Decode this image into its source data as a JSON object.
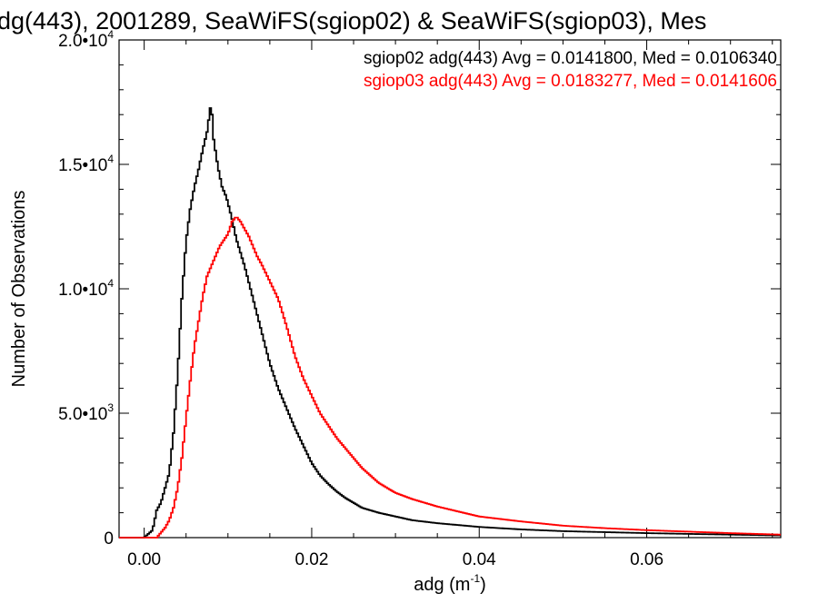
{
  "chart_data": {
    "type": "line",
    "title": "dg(443), 2001289, SeaWiFS(sgiop02) & SeaWiFS(sgiop03), Mes",
    "xlabel": "adg (m",
    "xlabel_sup": "-1",
    "xlabel_close": ")",
    "ylabel": "Number of Observations",
    "xlim": [
      -0.003,
      0.076
    ],
    "ylim": [
      0,
      20000
    ],
    "x_ticks": [
      {
        "value": 0.0,
        "label": "0.00"
      },
      {
        "value": 0.02,
        "label": "0.02"
      },
      {
        "value": 0.04,
        "label": "0.04"
      },
      {
        "value": 0.06,
        "label": "0.06"
      }
    ],
    "y_ticks": [
      {
        "value": 0,
        "label": "0",
        "sup": ""
      },
      {
        "value": 5000,
        "label": "5.0•10",
        "sup": "3"
      },
      {
        "value": 10000,
        "label": "1.0•10",
        "sup": "4"
      },
      {
        "value": 15000,
        "label": "1.5•10",
        "sup": "4"
      },
      {
        "value": 20000,
        "label": "2.0•10",
        "sup": "4"
      }
    ],
    "legend_position": "top-right",
    "series": [
      {
        "legend": "sgiop02 adg(443) Avg = 0.0141800, Med = 0.0106340",
        "color": "#000000",
        "x": [
          -0.003,
          0.0,
          0.001,
          0.0015,
          0.002,
          0.003,
          0.0035,
          0.004,
          0.0045,
          0.005,
          0.0055,
          0.006,
          0.0065,
          0.007,
          0.0075,
          0.008,
          0.0083,
          0.0088,
          0.0093,
          0.0098,
          0.0105,
          0.011,
          0.012,
          0.013,
          0.014,
          0.015,
          0.016,
          0.017,
          0.018,
          0.019,
          0.02,
          0.021,
          0.022,
          0.023,
          0.024,
          0.025,
          0.026,
          0.028,
          0.03,
          0.032,
          0.035,
          0.04,
          0.045,
          0.05,
          0.055,
          0.06,
          0.065,
          0.07,
          0.076
        ],
        "y": [
          0,
          0,
          300,
          1100,
          1400,
          2600,
          4200,
          6600,
          9600,
          11900,
          13200,
          14100,
          14800,
          15600,
          16300,
          17500,
          16000,
          14900,
          14100,
          13700,
          12800,
          12000,
          10900,
          9600,
          8300,
          7000,
          6000,
          5200,
          4400,
          3700,
          3000,
          2500,
          2150,
          1850,
          1600,
          1400,
          1200,
          1000,
          850,
          700,
          580,
          430,
          330,
          260,
          220,
          180,
          150,
          120,
          90
        ]
      },
      {
        "legend": "sgiop03 adg(443) Avg = 0.0183277, Med = 0.0141606",
        "color": "#ff0000",
        "x": [
          -0.003,
          0.0015,
          0.002,
          0.0025,
          0.003,
          0.0035,
          0.004,
          0.0045,
          0.005,
          0.0055,
          0.006,
          0.0065,
          0.007,
          0.0075,
          0.008,
          0.009,
          0.01,
          0.0105,
          0.011,
          0.0115,
          0.012,
          0.0125,
          0.013,
          0.0135,
          0.014,
          0.015,
          0.016,
          0.017,
          0.018,
          0.019,
          0.02,
          0.021,
          0.022,
          0.023,
          0.024,
          0.025,
          0.026,
          0.027,
          0.028,
          0.03,
          0.032,
          0.035,
          0.04,
          0.045,
          0.05,
          0.055,
          0.06,
          0.065,
          0.07,
          0.076
        ],
        "y": [
          0,
          0,
          200,
          400,
          700,
          1200,
          2000,
          3200,
          4800,
          6300,
          7700,
          8700,
          9700,
          10500,
          10900,
          11700,
          12200,
          12700,
          12900,
          12700,
          12400,
          12100,
          11700,
          11300,
          11000,
          10300,
          9600,
          8500,
          7300,
          6400,
          5700,
          5000,
          4500,
          4000,
          3600,
          3200,
          2800,
          2500,
          2200,
          1800,
          1550,
          1250,
          850,
          650,
          480,
          380,
          300,
          240,
          180,
          120
        ]
      }
    ]
  }
}
